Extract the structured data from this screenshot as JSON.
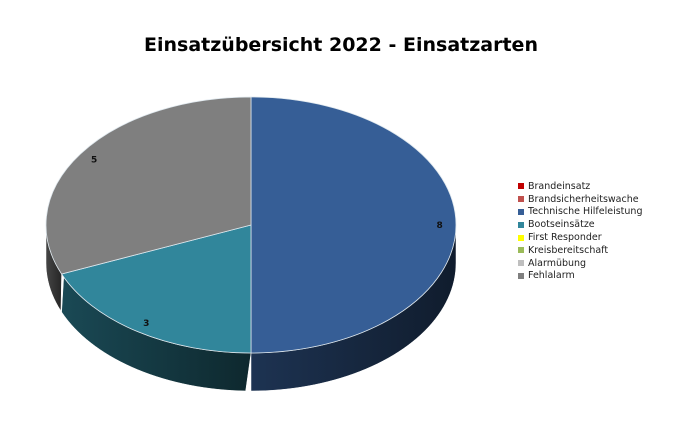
{
  "chart_data": {
    "type": "pie",
    "style": "3d",
    "title": "Einsatzübersicht 2022 - Einsatzarten",
    "legend_position": "right",
    "categories": [
      "Brandeinsatz",
      "Brandsicherheitswache",
      "Technische Hilfeleistung",
      "Bootseinsätze",
      "First Responder",
      "Kreisbereitschaft",
      "Alarmübung",
      "Fehlalarm"
    ],
    "values": [
      0,
      0,
      8,
      3,
      0,
      0,
      0,
      5
    ],
    "colors": [
      "#c00000",
      "#c0504d",
      "#365e96",
      "#31869b",
      "#ffff00",
      "#9bbb59",
      "#bfbfbf",
      "#7f7f7f"
    ],
    "data_labels": [
      "",
      "",
      "8",
      "3",
      "",
      "",
      "",
      "5"
    ]
  }
}
